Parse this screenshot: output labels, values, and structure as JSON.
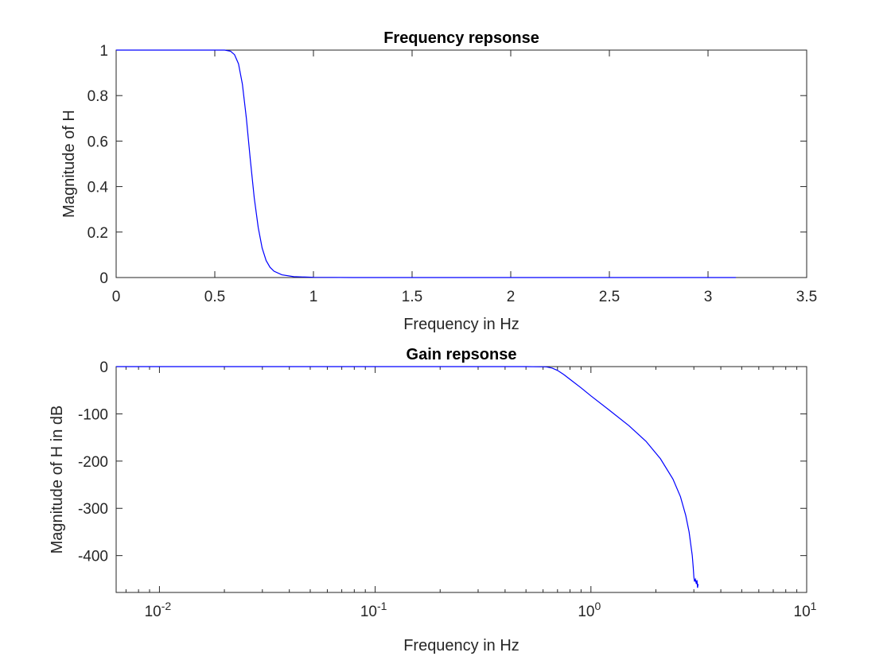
{
  "chart_data": [
    {
      "type": "line",
      "title": "Frequency repsonse",
      "xlabel": "Frequency in Hz",
      "ylabel": "Magnitude of H",
      "xscale": "linear",
      "xlim": [
        0,
        3.5
      ],
      "ylim": [
        0,
        1
      ],
      "xticks": [
        0,
        0.5,
        1,
        1.5,
        2,
        2.5,
        3,
        3.5
      ],
      "xtick_labels": [
        "0",
        "0.5",
        "1",
        "1.5",
        "2",
        "2.5",
        "3",
        "3.5"
      ],
      "yticks": [
        0,
        0.2,
        0.4,
        0.6,
        0.8,
        1
      ],
      "ytick_labels": [
        "0",
        "0.2",
        "0.4",
        "0.6",
        "0.8",
        "1"
      ],
      "grid": false,
      "color": "#0000ff",
      "series": [
        {
          "x": [
            0,
            0.4,
            0.55,
            0.58,
            0.6,
            0.62,
            0.64,
            0.66,
            0.68,
            0.7,
            0.72,
            0.74,
            0.76,
            0.78,
            0.8,
            0.84,
            0.9,
            1.0,
            1.2,
            1.6,
            2.0,
            2.5,
            3.0,
            3.1416
          ],
          "values": [
            1,
            1,
            1,
            0.995,
            0.98,
            0.94,
            0.85,
            0.7,
            0.52,
            0.35,
            0.22,
            0.13,
            0.075,
            0.045,
            0.028,
            0.012,
            0.004,
            0.001,
            0,
            0,
            0,
            0,
            0,
            0
          ]
        }
      ]
    },
    {
      "type": "line",
      "title": "Gain repsonse",
      "xlabel": "Frequency in Hz",
      "ylabel": "Magnitude of H in dB",
      "xscale": "log",
      "xlim": [
        0.0063,
        10
      ],
      "ylim": [
        -478,
        0
      ],
      "xticks": [
        0.01,
        0.1,
        1,
        10
      ],
      "xtick_labels": [
        "10",
        "10",
        "10",
        "10"
      ],
      "xtick_exponents": [
        "-2",
        "-1",
        "0",
        "1"
      ],
      "yticks": [
        -400,
        -300,
        -200,
        -100,
        0
      ],
      "ytick_labels": [
        "-400",
        "-300",
        "-200",
        "-100",
        "0"
      ],
      "grid": false,
      "color": "#0000ff",
      "series": [
        {
          "x": [
            0.0063,
            0.1,
            0.5,
            0.62,
            0.66,
            0.7,
            0.75,
            0.8,
            0.9,
            1.0,
            1.2,
            1.5,
            1.8,
            2.1,
            2.4,
            2.6,
            2.75,
            2.85,
            2.9,
            2.95,
            2.98,
            3.0,
            3.02,
            3.05,
            3.08,
            3.1,
            3.12,
            3.1416
          ],
          "values": [
            0,
            0,
            0,
            -0.5,
            -3,
            -8,
            -17,
            -27,
            -45,
            -62,
            -90,
            -125,
            -158,
            -195,
            -238,
            -275,
            -315,
            -350,
            -375,
            -400,
            -425,
            -445,
            -455,
            -450,
            -460,
            -452,
            -468,
            -460
          ]
        }
      ]
    }
  ]
}
